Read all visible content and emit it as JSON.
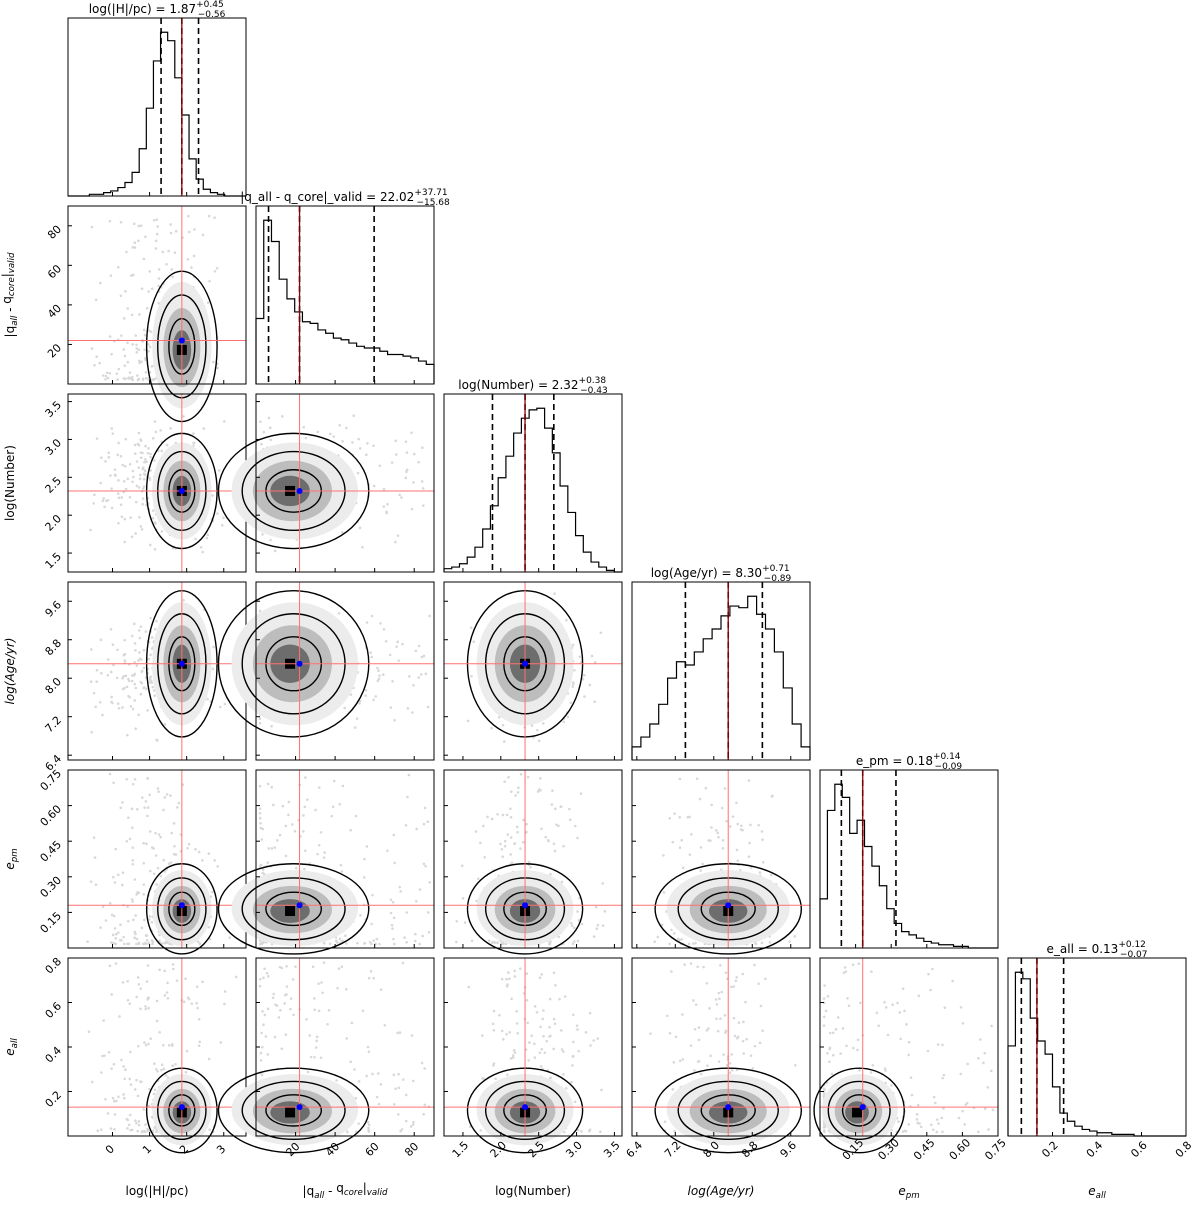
{
  "chart_data": {
    "type": "corner",
    "colors": {
      "median_line": "#8b0000",
      "truth_line": "#ff7070",
      "truth_point": "#0000ff",
      "contour": "#000000",
      "scatter": "#d8d8d8"
    },
    "parameters": [
      {
        "key": "H",
        "xlabel": "log(|H|/pc)",
        "ylabel": "",
        "range": [
          -1.2,
          3.6
        ],
        "ticks": [
          0,
          1,
          2,
          3
        ],
        "tick_labels": [
          "0",
          "1",
          "2",
          "3"
        ],
        "title_main": "log(|H|/pc) = 1.87",
        "title_sup": "+0.45",
        "title_sub": "−0.56",
        "median": 1.87,
        "q16": 1.31,
        "q84": 2.32,
        "truth": 1.87,
        "sigma": 0.5,
        "skew": 0,
        "hist": [
          0,
          0,
          0,
          1,
          1,
          2,
          3,
          5,
          8,
          14,
          28,
          52,
          80,
          97,
          92,
          70,
          48,
          22,
          10,
          4,
          2,
          1,
          0,
          0,
          0
        ]
      },
      {
        "key": "Q",
        "xlabel": "|q_all - q_core|_valid",
        "ylabel": "|q_all - q_core|_valid",
        "range": [
          0,
          90
        ],
        "ticks": [
          20,
          40,
          60,
          80
        ],
        "tick_labels": [
          "20",
          "40",
          "60",
          "80"
        ],
        "title_main": "|q_all - q_core|_valid = 22.02",
        "title_sup": "+37.71",
        "title_sub": "−15.68",
        "median": 22.02,
        "q16": 6.34,
        "q84": 59.73,
        "truth": 22.02,
        "sigma": 20,
        "skew": 1,
        "hist": [
          40,
          100,
          87,
          64,
          52,
          44,
          38,
          37,
          33,
          31,
          28,
          27,
          25,
          23,
          22,
          22,
          20,
          18,
          18,
          17,
          16,
          14,
          12
        ]
      },
      {
        "key": "N",
        "xlabel": "log(Number)",
        "ylabel": "log(Number)",
        "range": [
          1.25,
          3.6
        ],
        "ticks": [
          1.5,
          2.0,
          2.5,
          3.0,
          3.5
        ],
        "tick_labels": [
          "1.5",
          "2.0",
          "2.5",
          "3.0",
          "3.5"
        ],
        "title_main": "log(Number) = 2.32",
        "title_sup": "+0.38",
        "title_sub": "−0.43",
        "median": 2.32,
        "q16": 1.89,
        "q84": 2.7,
        "truth": 2.32,
        "sigma": 0.4,
        "skew": 0,
        "hist": [
          2,
          3,
          5,
          9,
          15,
          26,
          40,
          57,
          70,
          84,
          93,
          98,
          99,
          87,
          72,
          52,
          36,
          22,
          12,
          6,
          3,
          1,
          0
        ]
      },
      {
        "key": "A",
        "xlabel": "log(Age/yr)",
        "ylabel": "log(Age/yr)",
        "range": [
          6.3,
          10.0
        ],
        "ticks": [
          6.4,
          7.2,
          8.0,
          8.8,
          9.6
        ],
        "tick_labels": [
          "6.4",
          "7.2",
          "8.0",
          "8.8",
          "9.6"
        ],
        "title_main": "log(Age/yr) = 8.30",
        "title_sup": "+0.71",
        "title_sub": "−0.89",
        "median": 8.3,
        "q16": 7.41,
        "q84": 9.01,
        "truth": 8.3,
        "sigma": 0.8,
        "skew": -1,
        "hist": [
          8,
          14,
          22,
          34,
          50,
          60,
          58,
          66,
          74,
          80,
          88,
          94,
          93,
          100,
          89,
          80,
          66,
          44,
          22,
          8
        ]
      },
      {
        "key": "EP",
        "xlabel": "e_pm",
        "ylabel": "e_pm",
        "range": [
          0.0,
          0.75
        ],
        "ticks": [
          0.15,
          0.3,
          0.45,
          0.6,
          0.75
        ],
        "tick_labels": [
          "0.15",
          "0.30",
          "0.45",
          "0.60",
          "0.75"
        ],
        "title_main": "e_pm = 0.18",
        "title_sup": "+0.14",
        "title_sub": "−0.09",
        "median": 0.18,
        "q16": 0.09,
        "q84": 0.32,
        "truth": 0.18,
        "sigma": 0.1,
        "skew": 1,
        "hist": [
          30,
          84,
          100,
          92,
          70,
          78,
          62,
          50,
          38,
          24,
          15,
          10,
          8,
          6,
          4,
          3,
          2,
          2,
          1,
          1,
          0,
          0,
          0,
          0
        ]
      },
      {
        "key": "EA",
        "xlabel": "e_all",
        "ylabel": "e_all",
        "range": [
          0.0,
          0.8
        ],
        "ticks": [
          0.2,
          0.4,
          0.6,
          0.8
        ],
        "tick_labels": [
          "0.2",
          "0.4",
          "0.6",
          "0.8"
        ],
        "title_main": "e_all = 0.13",
        "title_sup": "+0.12",
        "title_sub": "−0.07",
        "median": 0.13,
        "q16": 0.06,
        "q84": 0.25,
        "truth": 0.13,
        "sigma": 0.1,
        "skew": 1,
        "hist": [
          55,
          100,
          96,
          72,
          58,
          50,
          30,
          14,
          9,
          6,
          4,
          3,
          2,
          2,
          1,
          1,
          1,
          0,
          0,
          0,
          0,
          0,
          0,
          0
        ]
      }
    ]
  }
}
